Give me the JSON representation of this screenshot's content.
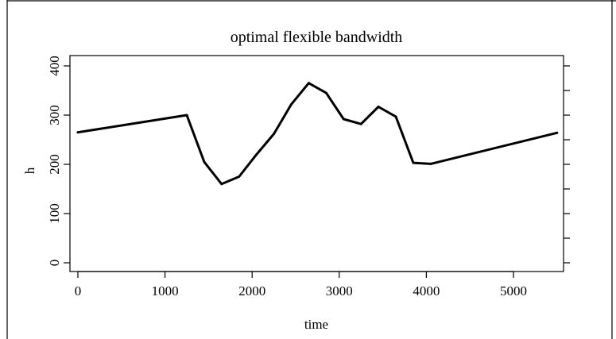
{
  "chart_data": {
    "type": "line",
    "title": "optimal flexible bandwidth",
    "xlabel": "time",
    "ylabel": "h",
    "xlim": [
      -100,
      5600
    ],
    "ylim": [
      -15,
      420
    ],
    "x_ticks": [
      0,
      1000,
      2000,
      3000,
      4000,
      5000
    ],
    "y_ticks": [
      0,
      100,
      200,
      300,
      400
    ],
    "minor_y_ticks_right": [
      0,
      50,
      100,
      150,
      200,
      250,
      300,
      350,
      400
    ],
    "grid": false,
    "series": [
      {
        "x": [
          0,
          1250,
          1450,
          1650,
          1850,
          2050,
          2250,
          2450,
          2650,
          2850,
          3050,
          3250,
          3450,
          3650,
          3850,
          4050,
          5500
        ],
        "y": [
          265,
          300,
          205,
          160,
          175,
          220,
          262,
          322,
          365,
          345,
          292,
          282,
          317,
          297,
          203,
          201,
          264
        ]
      }
    ],
    "colors": {
      "line": "#000000"
    }
  }
}
